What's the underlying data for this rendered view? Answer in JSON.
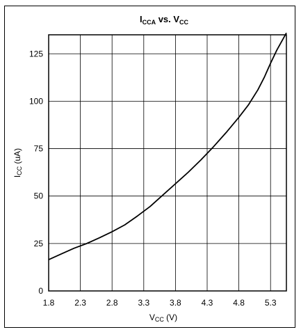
{
  "chart_data": {
    "type": "line",
    "title": {
      "i": "I",
      "i_sub": "CCA",
      "vs": " vs. V",
      "v_sub": "CC"
    },
    "xlabel": {
      "main": "V",
      "sub": "CC",
      "unit": " (V)"
    },
    "ylabel": {
      "main": "I",
      "sub": "CC",
      "unit": " (uA)"
    },
    "xlim": [
      1.8,
      5.55
    ],
    "ylim": [
      0,
      135
    ],
    "x_ticks": [
      "1.8",
      "2.3",
      "2.8",
      "3.3",
      "3.8",
      "4.3",
      "4.8",
      "5.3"
    ],
    "y_ticks": [
      "0",
      "25",
      "50",
      "75",
      "100",
      "125"
    ],
    "grid": true,
    "series": [
      {
        "x": [
          1.8,
          2.0,
          2.2,
          2.4,
          2.6,
          2.8,
          3.0,
          3.2,
          3.4,
          3.6,
          3.8,
          4.0,
          4.2,
          4.4,
          4.6,
          4.8,
          4.95,
          5.1,
          5.2,
          5.3,
          5.4,
          5.55
        ],
        "y": [
          16.5,
          19.5,
          22.5,
          25.0,
          28.0,
          31.2,
          34.8,
          39.5,
          44.5,
          50.5,
          56.5,
          62.5,
          69.0,
          76.0,
          83.5,
          91.5,
          98.0,
          106.0,
          112.5,
          120.0,
          127.0,
          136.0
        ]
      }
    ]
  }
}
